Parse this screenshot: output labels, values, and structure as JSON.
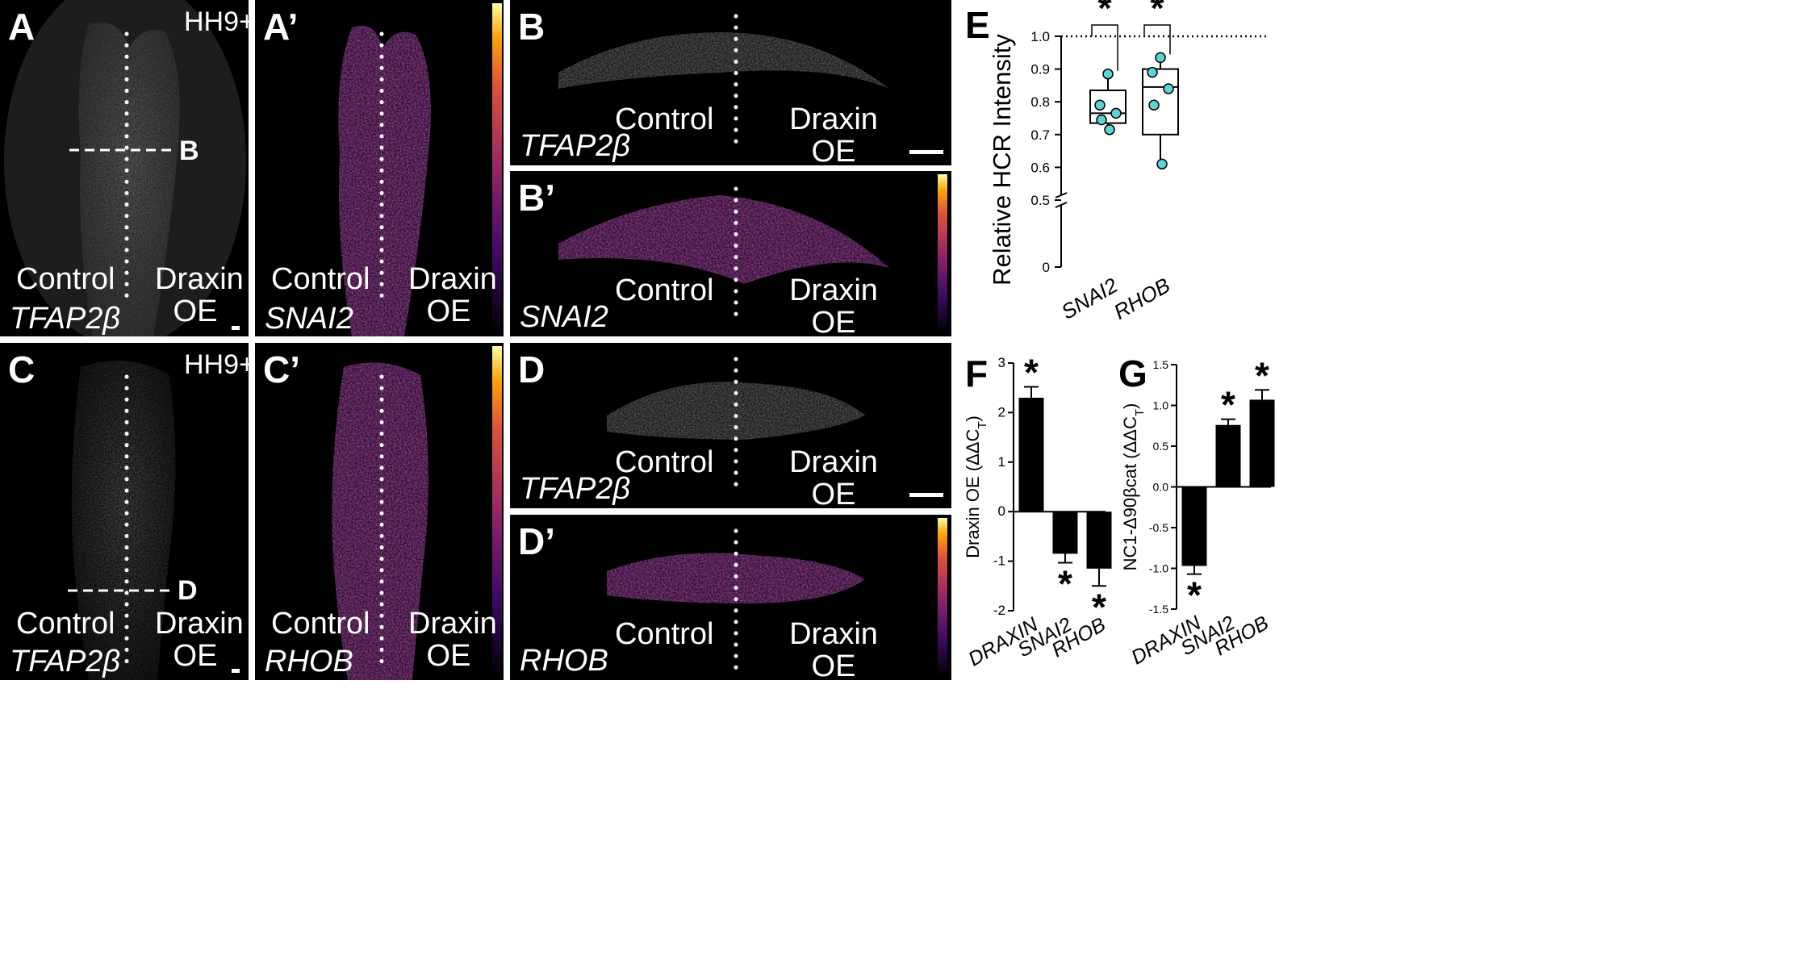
{
  "figure": {
    "panel_letters": {
      "a": "A",
      "a_prime": "A’",
      "b": "B",
      "b_prime": "B’",
      "c": "C",
      "c_prime": "C’",
      "d": "D",
      "d_prime": "D’",
      "e": "E",
      "f": "F",
      "g": "G"
    },
    "stage_label": "HH9+",
    "control_label": "Control",
    "draxin_label": "Draxin",
    "oe_label": "OE",
    "section_marker_b": "B",
    "section_marker_d": "D",
    "genes": {
      "tfap2b": "TFAP2β",
      "snai2": "SNAI2",
      "rhob": "RHOB"
    },
    "colors": {
      "background": "#000000",
      "signal_gray": "#d9d9d9",
      "inferno_low": "#1b0c41",
      "inferno_mid": "#b5367a",
      "inferno_high": "#fcffa4",
      "teal_points": "#5fd3d3"
    }
  },
  "chart_data": [
    {
      "panel": "E",
      "type": "box",
      "ylabel": "Relative HCR Intensity",
      "xlabel": "",
      "categories": [
        "SNAI2",
        "RHOB"
      ],
      "ylim": [
        0,
        1.0
      ],
      "axis_break_below": 0.5,
      "y_ticks": [
        "0",
        "0.5",
        "0.6",
        "0.7",
        "0.8",
        "0.9",
        "1.0"
      ],
      "reference_line": 1.0,
      "significance": [
        "*",
        "*"
      ],
      "boxes": [
        {
          "category": "SNAI2",
          "min": 0.71,
          "q1": 0.735,
          "median": 0.765,
          "q3": 0.835,
          "max": 0.885,
          "points": [
            0.885,
            0.79,
            0.765,
            0.745,
            0.715
          ]
        },
        {
          "category": "RHOB",
          "min": 0.61,
          "q1": 0.7,
          "median": 0.845,
          "q3": 0.9,
          "max": 0.935,
          "points": [
            0.935,
            0.89,
            0.84,
            0.79,
            0.61
          ]
        }
      ]
    },
    {
      "panel": "F",
      "type": "bar",
      "ylabel": "Draxin OE (ΔΔC",
      "ylabel_sub": "T",
      "ylabel_end": ")",
      "categories": [
        "DRAXIN",
        "SNAI2",
        "RHOB"
      ],
      "values": [
        2.3,
        -0.85,
        -1.15
      ],
      "errors": [
        0.22,
        0.18,
        0.35
      ],
      "ylim": [
        -2,
        3
      ],
      "y_ticks": [
        "-2",
        "-1",
        "0",
        "1",
        "2",
        "3"
      ],
      "significance": [
        "*",
        "*",
        "*"
      ]
    },
    {
      "panel": "G",
      "type": "bar",
      "ylabel": "NC1-Δ90βcat (ΔΔC",
      "ylabel_sub": "T",
      "ylabel_end": ")",
      "categories": [
        "DRAXIN",
        "SNAI2",
        "RHOB"
      ],
      "values": [
        -0.97,
        0.76,
        1.07
      ],
      "errors": [
        0.1,
        0.07,
        0.12
      ],
      "ylim": [
        -1.5,
        1.5
      ],
      "y_ticks": [
        "-1.5",
        "-1.0",
        "-0.5",
        "0.0",
        "0.5",
        "1.0",
        "1.5"
      ],
      "significance": [
        "*",
        "*",
        "*"
      ]
    }
  ]
}
